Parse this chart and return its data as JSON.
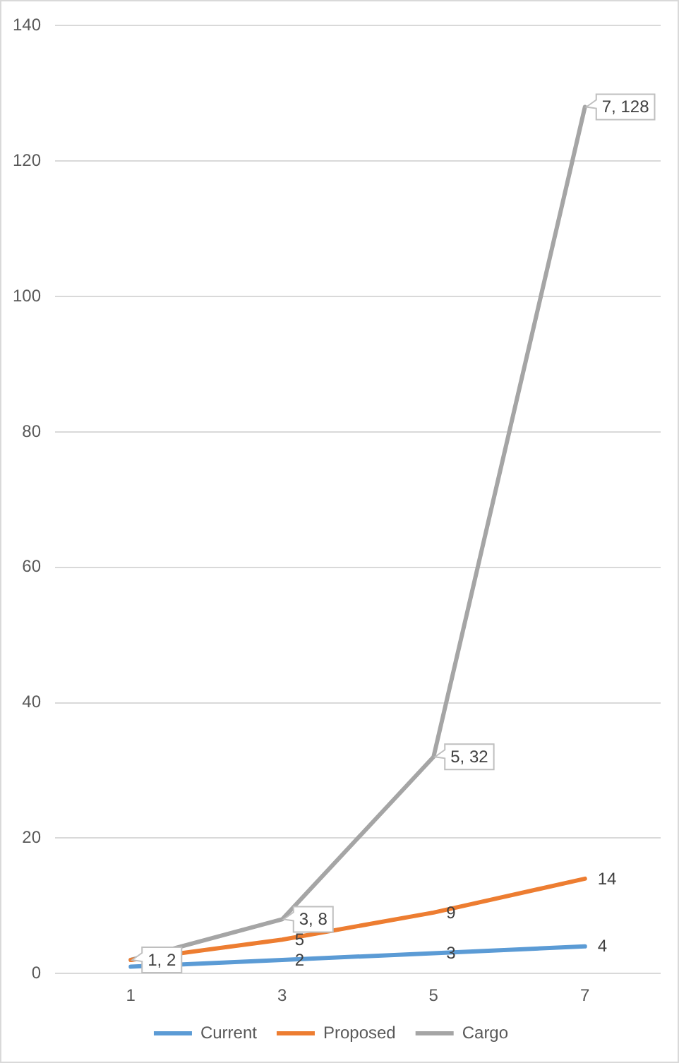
{
  "chart_data": {
    "type": "line",
    "categories": [
      "1",
      "3",
      "5",
      "7"
    ],
    "series": [
      {
        "name": "Current",
        "color": "#5b9bd5",
        "values": [
          1,
          2,
          3,
          4
        ],
        "value_labels": [
          null,
          "2",
          "3",
          "4"
        ]
      },
      {
        "name": "Proposed",
        "color": "#ed7d31",
        "values": [
          2,
          5,
          9,
          14
        ],
        "value_labels": [
          null,
          "5",
          "9",
          "14"
        ]
      },
      {
        "name": "Cargo",
        "color": "#a5a5a5",
        "values": [
          2,
          8,
          32,
          128
        ],
        "value_labels": [
          "1, 2",
          "3, 8",
          "5, 32",
          "7, 128"
        ]
      }
    ],
    "ylim": [
      0,
      140
    ],
    "yticks": [
      0,
      20,
      40,
      60,
      80,
      100,
      120,
      140
    ],
    "grid": "y",
    "legend": "bottom",
    "marker": "none",
    "line_style": "solid"
  }
}
